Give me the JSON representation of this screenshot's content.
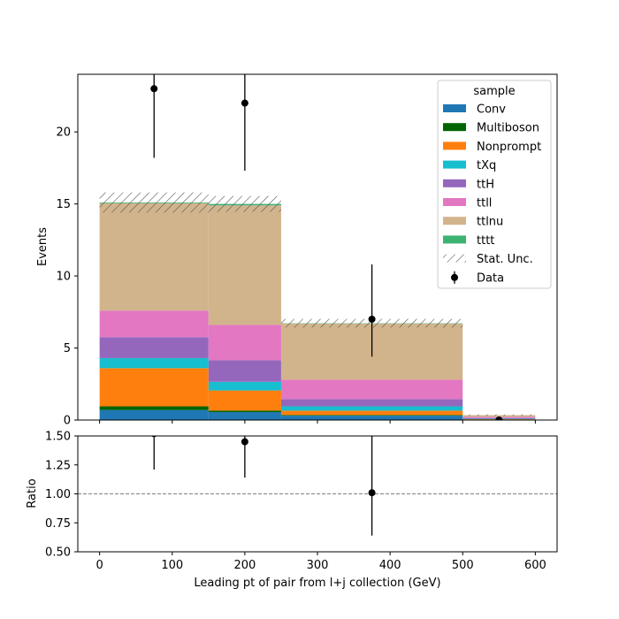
{
  "chart_data": [
    {
      "type": "bar",
      "stacked": true,
      "xlabel": "",
      "ylabel": "Events",
      "xlim": [
        -30,
        630
      ],
      "ylim": [
        0,
        24
      ],
      "yticks": [
        0,
        5,
        10,
        15,
        20
      ],
      "yticklabels": [
        "0",
        "5",
        "10",
        "15",
        "20"
      ],
      "bins": [
        [
          0,
          150
        ],
        [
          150,
          250
        ],
        [
          250,
          500
        ],
        [
          500,
          600
        ]
      ],
      "series": [
        {
          "name": "Conv",
          "color": "#1f77b4",
          "values": [
            0.7,
            0.55,
            0.3,
            0.03
          ]
        },
        {
          "name": "Multiboson",
          "color": "#006400",
          "values": [
            0.25,
            0.1,
            0.05,
            0.01
          ]
        },
        {
          "name": "Nonprompt",
          "color": "#ff7f0e",
          "values": [
            2.65,
            1.4,
            0.3,
            0.02
          ]
        },
        {
          "name": "tXq",
          "color": "#17becf",
          "values": [
            0.7,
            0.6,
            0.3,
            0.03
          ]
        },
        {
          "name": "ttH",
          "color": "#9467bd",
          "values": [
            1.45,
            1.5,
            0.5,
            0.05
          ]
        },
        {
          "name": "ttll",
          "color": "#e377c2",
          "values": [
            1.85,
            2.45,
            1.35,
            0.08
          ]
        },
        {
          "name": "ttlnu",
          "color": "#d2b48c",
          "values": [
            7.45,
            8.3,
            3.9,
            0.12
          ]
        },
        {
          "name": "tttt",
          "color": "#3cb371",
          "values": [
            0.05,
            0.1,
            0.02,
            0.0
          ]
        }
      ],
      "stat_unc": {
        "name": "Stat. Unc.",
        "values": [
          0.7,
          0.55,
          0.3,
          0.05
        ]
      },
      "data": {
        "name": "Data",
        "x": [
          75,
          200,
          375,
          550
        ],
        "y": [
          23,
          22,
          7,
          0
        ],
        "err_low": [
          4.8,
          4.7,
          2.6,
          0
        ],
        "err_high": [
          5.9,
          5.8,
          3.8,
          0
        ]
      },
      "legend": {
        "title": "sample",
        "placement": "top-right"
      }
    },
    {
      "type": "scatter",
      "xlabel": "Leading pt of pair from l+j collection (GeV)",
      "ylabel": "Ratio",
      "xlim": [
        -30,
        630
      ],
      "ylim": [
        0.5,
        1.5
      ],
      "xticks": [
        0,
        100,
        200,
        300,
        400,
        500,
        600
      ],
      "xticklabels": [
        "0",
        "100",
        "200",
        "300",
        "400",
        "500",
        "600"
      ],
      "yticks": [
        0.5,
        0.75,
        1.0,
        1.25,
        1.5
      ],
      "yticklabels": [
        "0.50",
        "0.75",
        "1.00",
        "1.25",
        "1.50"
      ],
      "reference_line": 1.0,
      "points": {
        "x": [
          75,
          200,
          375
        ],
        "y": [
          1.52,
          1.45,
          1.01
        ],
        "err_low": [
          0.31,
          0.31,
          0.37
        ],
        "err_high": [
          0.38,
          0.38,
          0.54
        ]
      }
    }
  ]
}
